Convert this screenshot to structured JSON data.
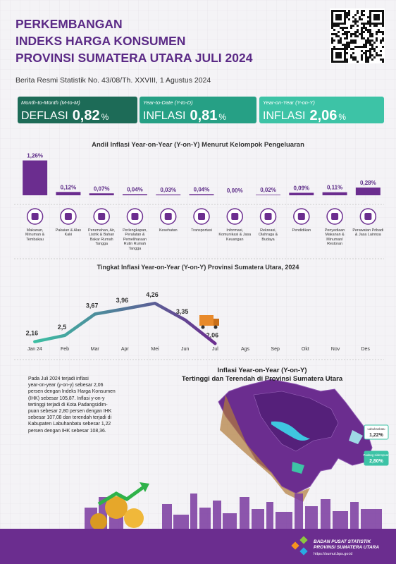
{
  "header": {
    "title_lines": [
      "PERKEMBANGAN",
      "INDEKS HARGA KONSUMEN",
      "PROVINSI SUMATERA UTARA JULI 2024"
    ],
    "subtitle": "Berita Resmi Statistik No. 43/08/Th. XXVIII, 1 Agustus 2024"
  },
  "summary": [
    {
      "period": "Month-to-Month (M-to-M)",
      "kind": "DEFLASI",
      "value": 0.82,
      "label": "0,82",
      "unit": "%",
      "color": "#1d6b57"
    },
    {
      "period": "Year-to-Date (Y-to-D)",
      "kind": "INFLASI",
      "value": 0.81,
      "label": "0,81",
      "unit": "%",
      "color": "#26a085"
    },
    {
      "period": "Year-on-Year (Y-on-Y)",
      "kind": "INFLASI",
      "value": 2.06,
      "label": "2,06",
      "unit": "%",
      "color": "#3dc3a6"
    }
  ],
  "bar_chart": {
    "type": "bar",
    "title": "Andil Inflasi Year-on-Year (Y-on-Y) Menurut Kelompok Pengeluaran",
    "categories": [
      "Makanan, Minuman & Tembakau",
      "Pakaian & Alas Kaki",
      "Perumahan, Air, Listrik & Bahan Bakar Rumah Tangga",
      "Perlengkapan, Peralatan & Pemeliharaan Rutin Rumah Tangga",
      "Kesehatan",
      "Transportasi",
      "Informasi, Komunikasi & Jasa Keuangan",
      "Rekreasi, Olahraga & Budaya",
      "Pendidikan",
      "Penyediaan Makanan & Minuman/ Restoran",
      "Perawatan Pribadi & Jasa Lainnya"
    ],
    "values": [
      1.26,
      0.12,
      0.07,
      0.04,
      0.03,
      0.04,
      0.0,
      0.02,
      0.09,
      0.11,
      0.28
    ],
    "value_labels": [
      "1,26%",
      "0,12%",
      "0,07%",
      "0,04%",
      "0,03%",
      "0,04%",
      "0,00%",
      "0,02%",
      "0,09%",
      "0,11%",
      "0,28%"
    ],
    "color": "#6b2d8f",
    "ylim": [
      0,
      1.3
    ]
  },
  "line_chart": {
    "type": "line",
    "title": "Tingkat Inflasi Year-on-Year (Y-on-Y) Provinsi Sumatera Utara, 2024",
    "categories": [
      "Jan 24",
      "Feb",
      "Mar",
      "Apr",
      "Mei",
      "Jun",
      "Jul",
      "Ags",
      "Sep",
      "Okt",
      "Nov",
      "Des"
    ],
    "values": [
      2.16,
      2.5,
      3.67,
      3.96,
      4.26,
      3.35,
      2.06,
      null,
      null,
      null,
      null,
      null
    ],
    "value_labels": [
      "2,16",
      "2,5",
      "3,67",
      "3,96",
      "4,26",
      "3,35",
      "2,06",
      null,
      null,
      null,
      null,
      null
    ],
    "colors": [
      "#3dbfa3",
      "#6b2d8f"
    ],
    "ylim": [
      1.8,
      4.5
    ]
  },
  "paragraph": [
    "Pada Juli 2024 terjadi inflasi",
    "year-on-year (y-on-y) sebesar 2,06",
    "persen dengan Indeks Harga Konsumen",
    "(IHK) sebesar 105,87. Inflasi y-on-y",
    "tertinggi terjadi di Kota Padangsidim-",
    "puan sebesar 2,80 persen dengan IHK",
    "sebesar 107,08 dan terendah terjadi di",
    "Kabupaten Labuhanbatu sebesar 1,22",
    "persen dengan IHK sebesar 108,36."
  ],
  "map": {
    "title_lines": [
      "Inflasi Year-on-Year (Y-on-Y)",
      "Tertinggi dan Terendah di Provinsi Sumatera Utara"
    ],
    "labels": [
      {
        "name": "Labuhanbatu",
        "value": "1,22%"
      },
      {
        "name": "Padang sidempuan",
        "value": "2,80%"
      }
    ]
  },
  "footer": {
    "org_lines": [
      "BADAN PUSAT STATISTIK",
      "PROVINSI SUMATERA UTARA"
    ],
    "url": "https://sumut.bps.go.id"
  }
}
